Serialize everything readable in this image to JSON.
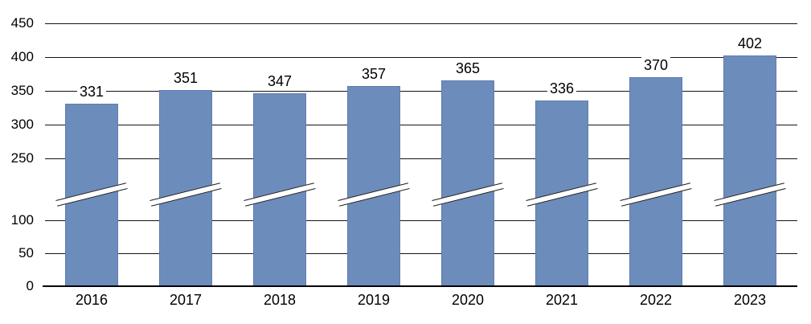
{
  "chart_data": {
    "type": "bar",
    "title": "",
    "categories": [
      "2016",
      "2017",
      "2018",
      "2019",
      "2020",
      "2021",
      "2022",
      "2023"
    ],
    "values": [
      331,
      351,
      347,
      357,
      365,
      336,
      370,
      402
    ],
    "series": [
      {
        "name": "unlabeled-series",
        "values": [
          331,
          351,
          347,
          357,
          365,
          336,
          370,
          402
        ]
      }
    ],
    "xlabel": "",
    "ylabel": "",
    "y_ticks": [
      "450",
      "400",
      "350",
      "300",
      "250",
      "100",
      "50",
      "0"
    ],
    "y_tick_values": [
      450,
      400,
      350,
      300,
      250,
      100,
      50,
      0
    ],
    "axis_break": {
      "between_low": 100,
      "between_high": 250,
      "marker": "diagonal-double-slash-on-each-bar"
    },
    "grid": "horizontal",
    "legend": "none",
    "data_labels_shown": true,
    "colors": {
      "bar_fill": "#6C8CBC",
      "bar_border": "#5F7DAB",
      "gridline": "#141414",
      "axis": "#000000",
      "text": "#000000",
      "background": "#FFFFFF"
    }
  }
}
